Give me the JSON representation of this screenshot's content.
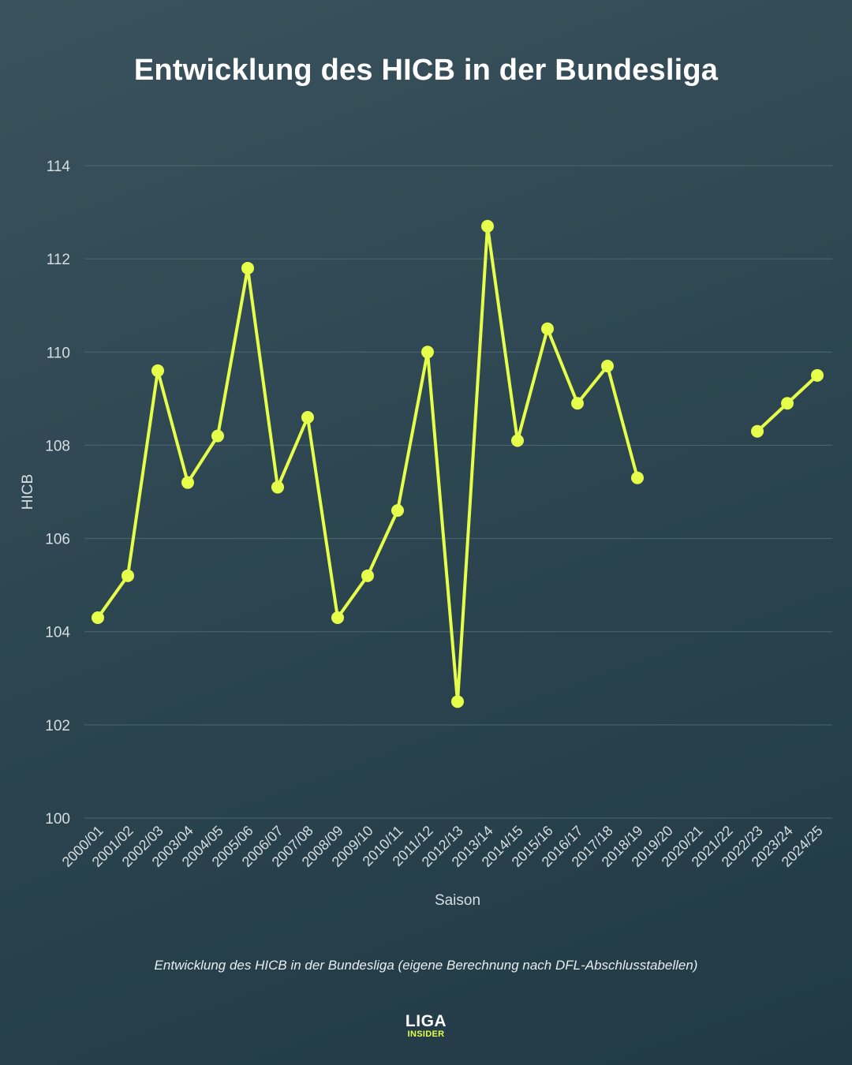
{
  "title": "Entwicklung des HICB in der Bundesliga",
  "caption": "Entwicklung des HICB in der Bundesliga (eigene Berechnung nach DFL-Abschlusstabellen)",
  "logo": {
    "top": "LIGA",
    "bottom": "INSIDER"
  },
  "colors": {
    "line": "#e6ff4a",
    "grid": "#4f6670",
    "tick_text": "#d6dee1",
    "background_start": "#3a525d",
    "background_end": "#213a46"
  },
  "chart_data": {
    "type": "line",
    "title": "Entwicklung des HICB in der Bundesliga",
    "xlabel": "Saison",
    "ylabel": "HICB",
    "ylim": [
      100,
      114
    ],
    "yticks": [
      100,
      102,
      104,
      106,
      108,
      110,
      112,
      114
    ],
    "grid": true,
    "legend": "none",
    "categories": [
      "2000/01",
      "2001/02",
      "2002/03",
      "2003/04",
      "2004/05",
      "2005/06",
      "2006/07",
      "2007/08",
      "2008/09",
      "2009/10",
      "2010/11",
      "2011/12",
      "2012/13",
      "2013/14",
      "2014/15",
      "2015/16",
      "2016/17",
      "2017/18",
      "2018/19",
      "2019/20",
      "2020/21",
      "2021/22",
      "2022/23",
      "2023/24",
      "2024/25"
    ],
    "series": [
      {
        "values": [
          104.3,
          105.2,
          109.6,
          107.2,
          108.2,
          111.8,
          107.1,
          108.6,
          104.3,
          105.2,
          106.6,
          110.0,
          102.5,
          112.7,
          108.1,
          110.5,
          108.9,
          109.7,
          107.3,
          null,
          null,
          null,
          108.3,
          108.9,
          109.5
        ]
      }
    ]
  }
}
